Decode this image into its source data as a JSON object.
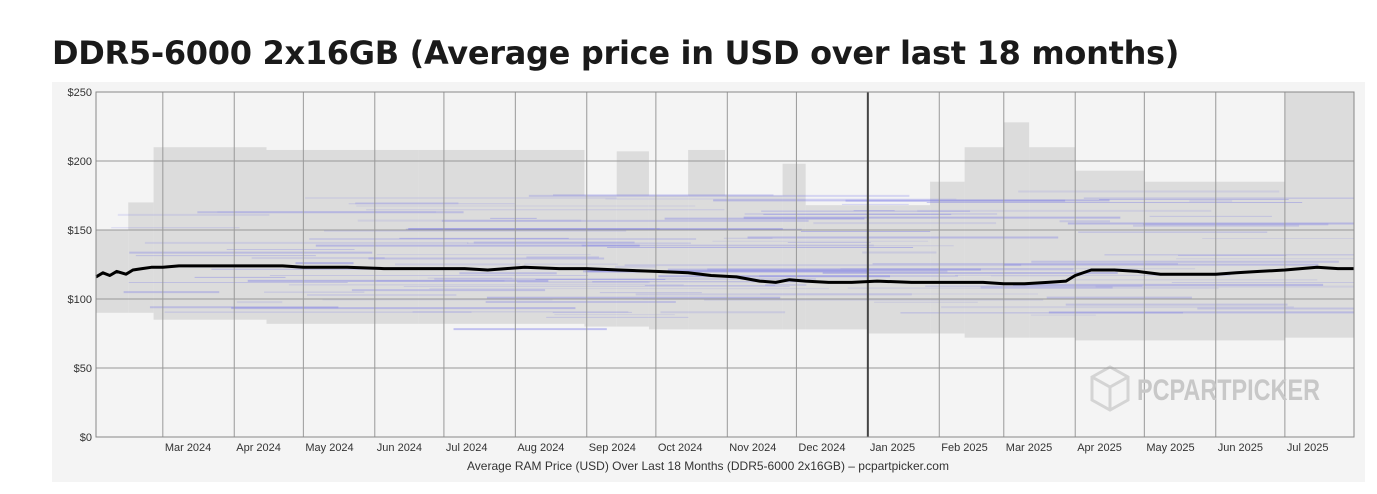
{
  "page": {
    "title": "DDR5-6000 2x16GB (Average price in USD over last 18 months)"
  },
  "chart_data": {
    "type": "line",
    "title": "DDR5-6000 2x16GB (Average price in USD over last 18 months)",
    "caption": "Average RAM Price (USD) Over Last 18 Months (DDR5-6000 2x16GB) – pcpartpicker.com",
    "watermark": "PCPARTPICKER",
    "xlabel": "",
    "ylabel": "",
    "x_range": [
      "2024-02-01",
      "2025-07-31"
    ],
    "ylim": [
      0,
      250
    ],
    "y_ticks": [
      {
        "value": 0,
        "label": "$0"
      },
      {
        "value": 50,
        "label": "$50"
      },
      {
        "value": 100,
        "label": "$100"
      },
      {
        "value": 150,
        "label": "$150"
      },
      {
        "value": 200,
        "label": "$200"
      },
      {
        "value": 250,
        "label": "$250"
      }
    ],
    "x_ticks": [
      {
        "date": "2024-03-01",
        "label": "Mar 2024"
      },
      {
        "date": "2024-04-01",
        "label": "Apr 2024"
      },
      {
        "date": "2024-05-01",
        "label": "May 2024"
      },
      {
        "date": "2024-06-01",
        "label": "Jun 2024"
      },
      {
        "date": "2024-07-01",
        "label": "Jul 2024"
      },
      {
        "date": "2024-08-01",
        "label": "Aug 2024"
      },
      {
        "date": "2024-09-01",
        "label": "Sep 2024"
      },
      {
        "date": "2024-10-01",
        "label": "Oct 2024"
      },
      {
        "date": "2024-11-01",
        "label": "Nov 2024"
      },
      {
        "date": "2024-12-01",
        "label": "Dec 2024"
      },
      {
        "date": "2025-01-01",
        "label": "Jan 2025"
      },
      {
        "date": "2025-02-01",
        "label": "Feb 2025"
      },
      {
        "date": "2025-03-01",
        "label": "Mar 2025"
      },
      {
        "date": "2025-04-01",
        "label": "Apr 2025"
      },
      {
        "date": "2025-05-01",
        "label": "May 2025"
      },
      {
        "date": "2025-06-01",
        "label": "Jun 2025"
      },
      {
        "date": "2025-07-01",
        "label": "Jul 2025"
      }
    ],
    "year_divider": "2025-01-01",
    "grid": true,
    "colors": {
      "average_line": "#000000",
      "price_lines": "#6b6be8",
      "price_range": "#dcdcdc",
      "plot_background": "#f4f4f4"
    },
    "series": [
      {
        "name": "Average",
        "points": [
          [
            "2024-02-01",
            116
          ],
          [
            "2024-02-04",
            119
          ],
          [
            "2024-02-07",
            117
          ],
          [
            "2024-02-10",
            120
          ],
          [
            "2024-02-14",
            118
          ],
          [
            "2024-02-17",
            121
          ],
          [
            "2024-02-21",
            122
          ],
          [
            "2024-02-25",
            123
          ],
          [
            "2024-03-01",
            123
          ],
          [
            "2024-03-08",
            124
          ],
          [
            "2024-03-15",
            124
          ],
          [
            "2024-03-25",
            124
          ],
          [
            "2024-04-08",
            124
          ],
          [
            "2024-04-22",
            124
          ],
          [
            "2024-05-01",
            123
          ],
          [
            "2024-05-20",
            123
          ],
          [
            "2024-06-05",
            122
          ],
          [
            "2024-06-25",
            122
          ],
          [
            "2024-07-10",
            122
          ],
          [
            "2024-07-20",
            121
          ],
          [
            "2024-07-28",
            122
          ],
          [
            "2024-08-05",
            123
          ],
          [
            "2024-08-20",
            122
          ],
          [
            "2024-09-01",
            122
          ],
          [
            "2024-09-15",
            121
          ],
          [
            "2024-10-01",
            120
          ],
          [
            "2024-10-15",
            119
          ],
          [
            "2024-10-25",
            117
          ],
          [
            "2024-11-05",
            116
          ],
          [
            "2024-11-15",
            113
          ],
          [
            "2024-11-22",
            112
          ],
          [
            "2024-11-28",
            114
          ],
          [
            "2024-12-05",
            113
          ],
          [
            "2024-12-15",
            112
          ],
          [
            "2024-12-25",
            112
          ],
          [
            "2025-01-05",
            113
          ],
          [
            "2025-01-20",
            112
          ],
          [
            "2025-02-05",
            112
          ],
          [
            "2025-02-20",
            112
          ],
          [
            "2025-03-01",
            111
          ],
          [
            "2025-03-10",
            111
          ],
          [
            "2025-03-20",
            112
          ],
          [
            "2025-03-28",
            113
          ],
          [
            "2025-04-01",
            117
          ],
          [
            "2025-04-08",
            121
          ],
          [
            "2025-04-18",
            121
          ],
          [
            "2025-04-28",
            120
          ],
          [
            "2025-05-08",
            118
          ],
          [
            "2025-05-20",
            118
          ],
          [
            "2025-06-01",
            118
          ],
          [
            "2025-06-10",
            119
          ],
          [
            "2025-06-20",
            120
          ],
          [
            "2025-07-01",
            121
          ],
          [
            "2025-07-08",
            122
          ],
          [
            "2025-07-15",
            123
          ],
          [
            "2025-07-24",
            122
          ],
          [
            "2025-07-31",
            122
          ]
        ]
      }
    ],
    "price_range_bands": [
      {
        "start": "2024-02-01",
        "end": "2024-02-15",
        "low": 90,
        "high": 150
      },
      {
        "start": "2024-02-15",
        "end": "2024-02-26",
        "low": 90,
        "high": 170
      },
      {
        "start": "2024-02-26",
        "end": "2024-04-15",
        "low": 85,
        "high": 210
      },
      {
        "start": "2024-04-15",
        "end": "2024-06-20",
        "low": 82,
        "high": 208
      },
      {
        "start": "2024-06-20",
        "end": "2024-08-31",
        "low": 82,
        "high": 208
      },
      {
        "start": "2024-08-31",
        "end": "2024-09-14",
        "low": 80,
        "high": 175
      },
      {
        "start": "2024-09-14",
        "end": "2024-09-28",
        "low": 80,
        "high": 207
      },
      {
        "start": "2024-09-28",
        "end": "2024-10-15",
        "low": 78,
        "high": 175
      },
      {
        "start": "2024-10-15",
        "end": "2024-10-31",
        "low": 78,
        "high": 208
      },
      {
        "start": "2024-10-31",
        "end": "2024-11-25",
        "low": 78,
        "high": 175
      },
      {
        "start": "2024-11-25",
        "end": "2024-12-05",
        "low": 78,
        "high": 198
      },
      {
        "start": "2024-12-05",
        "end": "2025-01-01",
        "low": 78,
        "high": 168
      },
      {
        "start": "2025-01-01",
        "end": "2025-01-28",
        "low": 75,
        "high": 168
      },
      {
        "start": "2025-01-28",
        "end": "2025-02-12",
        "low": 75,
        "high": 185
      },
      {
        "start": "2025-02-12",
        "end": "2025-03-01",
        "low": 72,
        "high": 210
      },
      {
        "start": "2025-03-01",
        "end": "2025-03-12",
        "low": 72,
        "high": 228
      },
      {
        "start": "2025-03-12",
        "end": "2025-04-01",
        "low": 72,
        "high": 210
      },
      {
        "start": "2025-04-01",
        "end": "2025-05-01",
        "low": 70,
        "high": 193
      },
      {
        "start": "2025-05-01",
        "end": "2025-07-01",
        "low": 70,
        "high": 185
      },
      {
        "start": "2025-07-01",
        "end": "2025-07-31",
        "low": 72,
        "high": 250
      }
    ]
  }
}
